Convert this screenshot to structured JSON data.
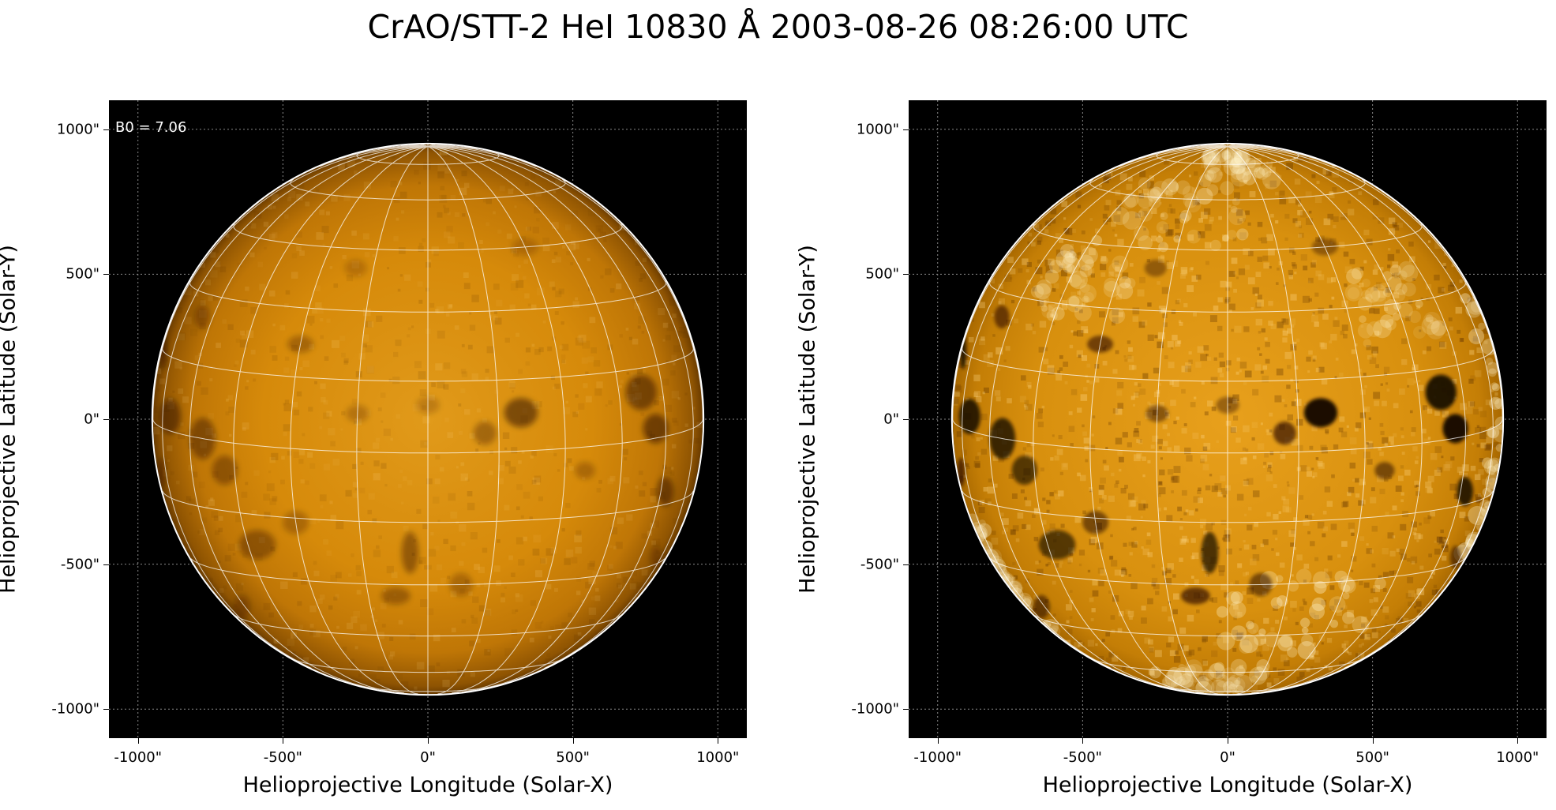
{
  "title": "CrAO/STT-2 HeI 10830 Å 2003-08-26 08:26:00 UTC",
  "colors": {
    "background": "#000000",
    "disk_mid": "#d68a00",
    "disk_dark": "#2a1200",
    "grid": "#ffffff",
    "limb": "#ffffff"
  },
  "panels": [
    {
      "name": "left",
      "xlabel": "Helioprojective Longitude (Solar-X)",
      "ylabel": "Helioprojective Latitude (Solar-Y)",
      "annotation": "B0 = 7.06",
      "xticks": [
        "-1000\"",
        "-500\"",
        "0\"",
        "500\"",
        "1000\""
      ],
      "yticks": [
        "1000\"",
        "500\"",
        "0\"",
        "-500\"",
        "-1000\""
      ],
      "style": "smooth"
    },
    {
      "name": "right",
      "xlabel": "Helioprojective Longitude (Solar-X)",
      "ylabel": "Helioprojective Latitude (Solar-Y)",
      "annotation": "",
      "xticks": [
        "-1000\"",
        "-500\"",
        "0\"",
        "500\"",
        "1000\""
      ],
      "yticks": [
        "1000\"",
        "500\"",
        "0\"",
        "-500\"",
        "-1000\""
      ],
      "style": "enhanced"
    }
  ],
  "axes": {
    "xlim": [
      -1100,
      1100
    ],
    "ylim": [
      -1100,
      1100
    ],
    "tick_values": [
      -1000,
      -500,
      0,
      500,
      1000
    ]
  },
  "sun": {
    "radius_arcsec": 948,
    "b0_deg": 7.06,
    "grid_step_deg": 15
  }
}
